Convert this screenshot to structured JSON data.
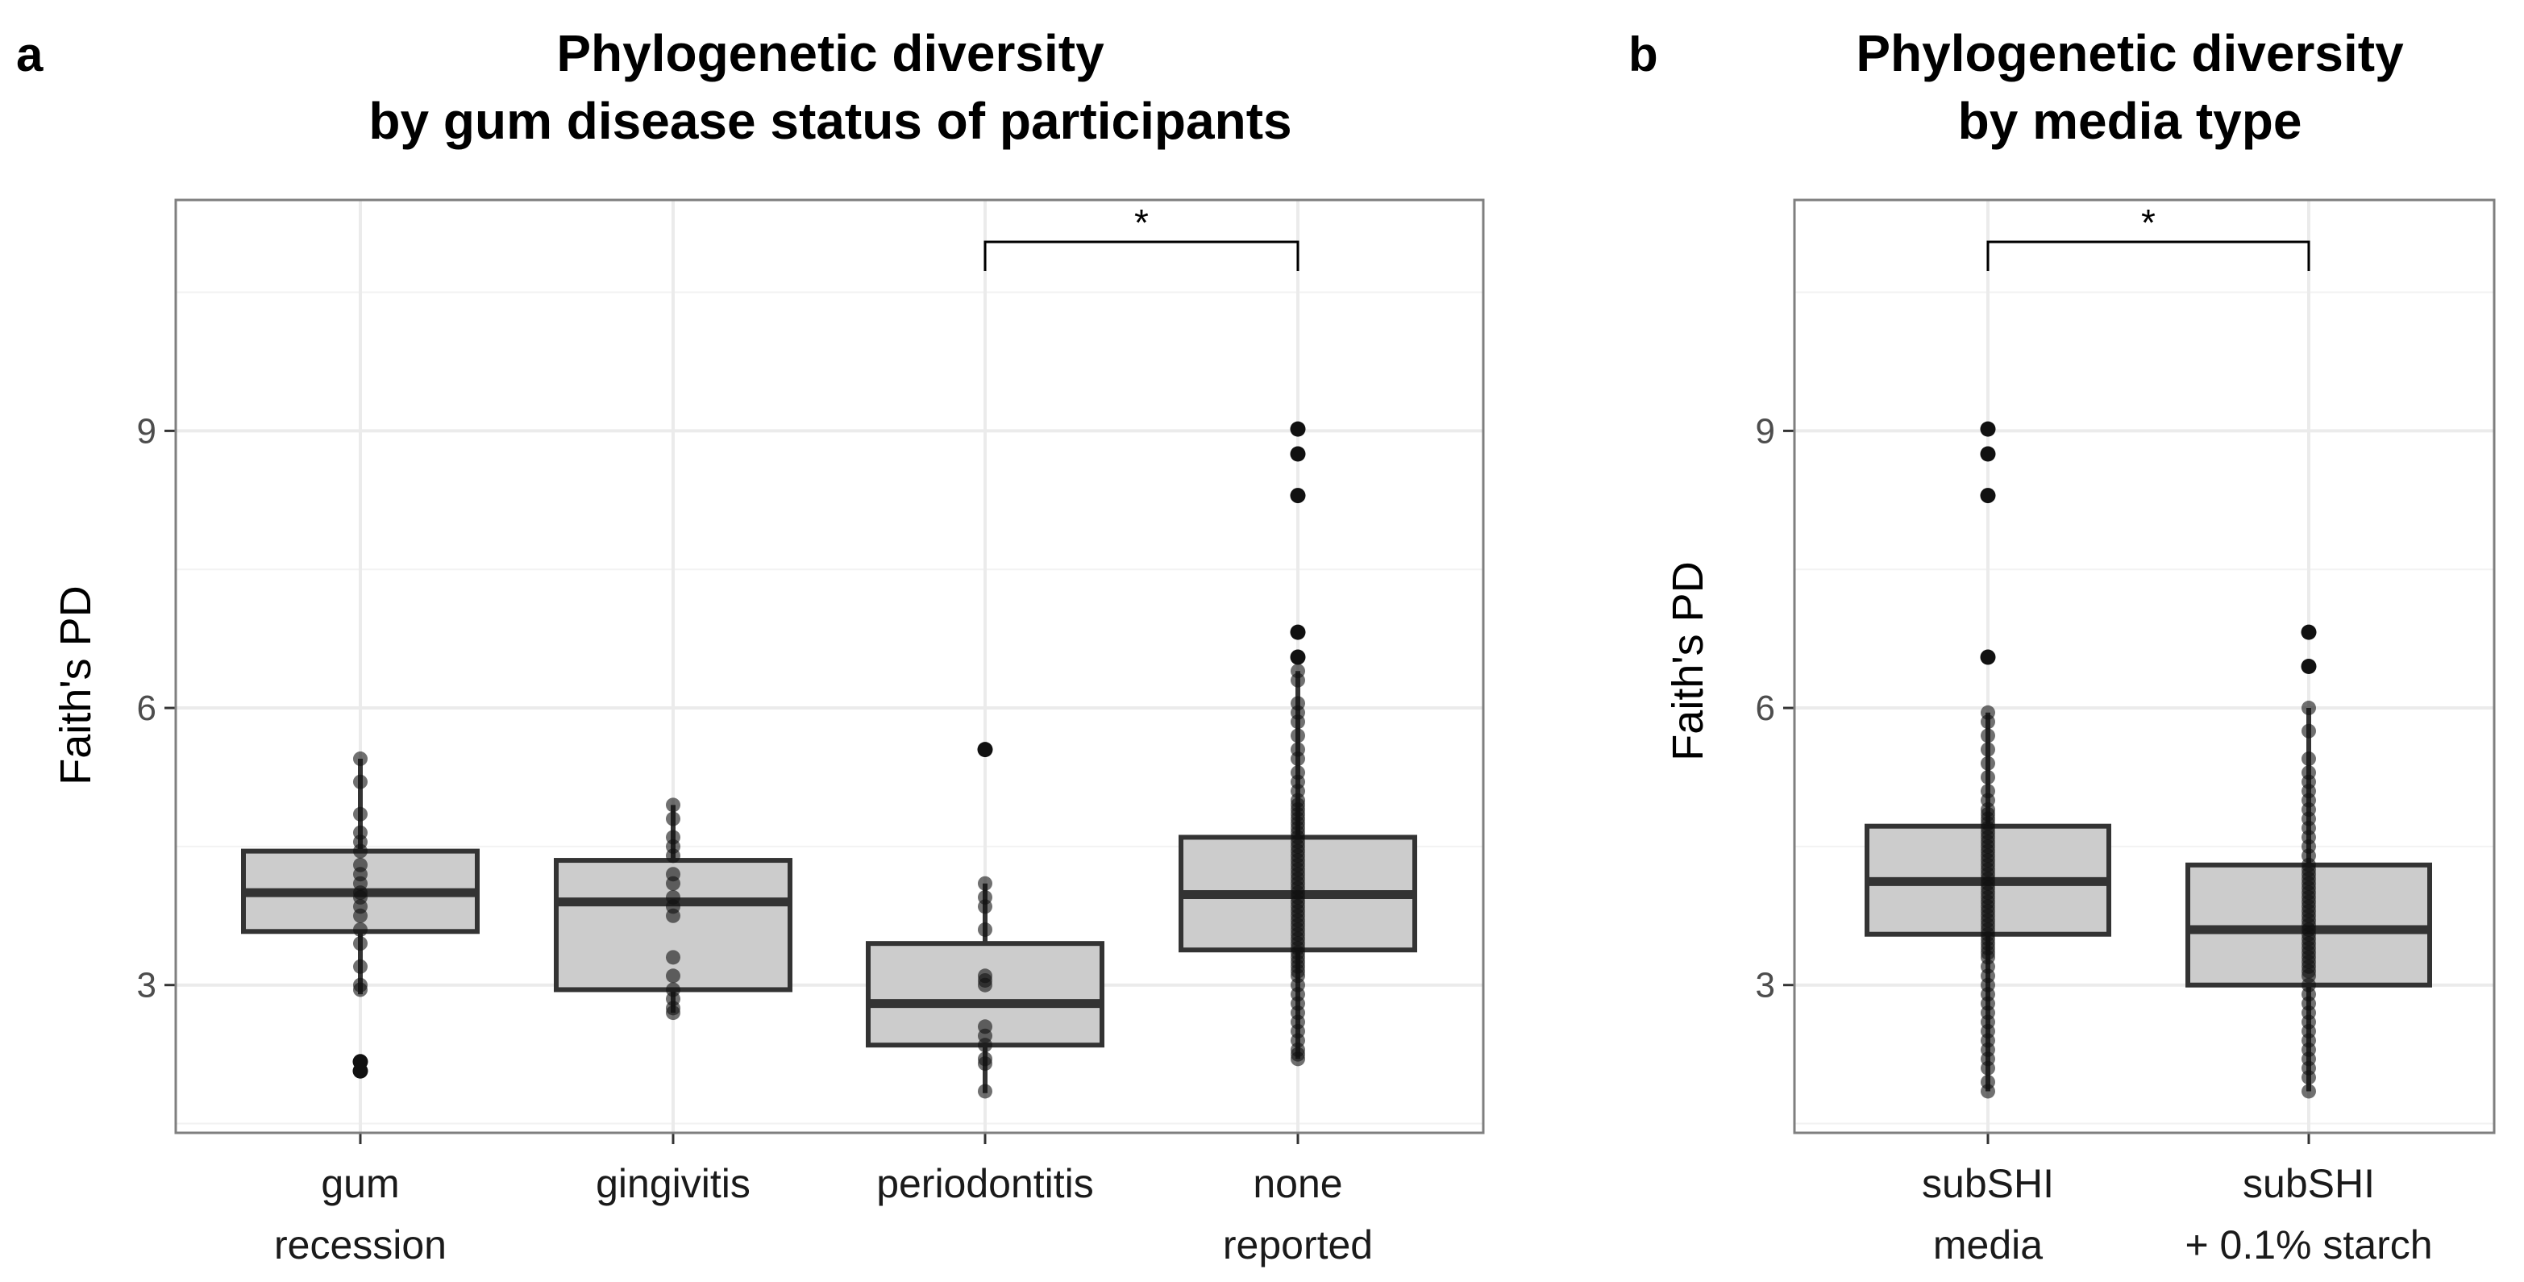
{
  "chart_data": [
    {
      "panel": "a",
      "type": "box",
      "title": [
        "Phylogenetic diversity",
        "by gum disease status of participants"
      ],
      "ylabel": "Faith's PD",
      "xlabel": "",
      "ylim": [
        1.4,
        11.5
      ],
      "yticks": [
        3,
        6,
        9
      ],
      "grid": true,
      "categories": [
        {
          "label": [
            "gum",
            "recession"
          ],
          "q1": 3.58,
          "median": 4.0,
          "q3": 4.45,
          "whisker_low": 2.9,
          "whisker_high": 5.45,
          "points": [
            5.45,
            5.2,
            4.85,
            4.65,
            4.55,
            4.45,
            4.3,
            4.2,
            4.1,
            4.0,
            3.95,
            3.85,
            3.75,
            3.6,
            3.45,
            3.2,
            3.0,
            2.95
          ],
          "outliers": [
            2.17,
            2.07
          ]
        },
        {
          "label": [
            "gingivitis"
          ],
          "q1": 2.95,
          "median": 3.9,
          "q3": 4.35,
          "whisker_low": 2.7,
          "whisker_high": 4.95,
          "points": [
            4.95,
            4.8,
            4.6,
            4.5,
            4.4,
            4.2,
            4.1,
            3.95,
            3.85,
            3.75,
            3.3,
            3.1,
            2.95,
            2.85,
            2.75,
            2.7
          ],
          "outliers": []
        },
        {
          "label": [
            "periodontitis"
          ],
          "q1": 2.35,
          "median": 2.8,
          "q3": 3.45,
          "whisker_low": 1.83,
          "whisker_high": 4.1,
          "points": [
            4.1,
            3.95,
            3.85,
            3.6,
            3.1,
            3.05,
            3.0,
            2.55,
            2.45,
            2.35,
            2.2,
            2.15,
            1.85
          ],
          "outliers": [
            5.55
          ]
        },
        {
          "label": [
            "none",
            "reported"
          ],
          "q1": 3.38,
          "median": 3.98,
          "q3": 4.6,
          "whisker_low": 2.2,
          "whisker_high": 6.4,
          "points": [
            6.4,
            6.3,
            6.05,
            5.95,
            5.85,
            5.7,
            5.55,
            5.45,
            5.3,
            5.2,
            5.1,
            5.0,
            4.95,
            4.9,
            4.85,
            4.8,
            4.75,
            4.7,
            4.65,
            4.6,
            4.55,
            4.5,
            4.45,
            4.4,
            4.35,
            4.3,
            4.25,
            4.2,
            4.15,
            4.1,
            4.05,
            4.0,
            3.95,
            3.9,
            3.85,
            3.8,
            3.75,
            3.7,
            3.65,
            3.6,
            3.55,
            3.5,
            3.45,
            3.4,
            3.35,
            3.3,
            3.25,
            3.2,
            3.15,
            3.1,
            3.0,
            2.9,
            2.8,
            2.7,
            2.6,
            2.5,
            2.4,
            2.3,
            2.25,
            2.2
          ],
          "outliers": [
            9.02,
            8.75,
            8.3,
            6.82,
            6.55
          ]
        }
      ],
      "significance": [
        {
          "from": 2,
          "to": 3,
          "label": "*"
        }
      ]
    },
    {
      "panel": "b",
      "type": "box",
      "title": [
        "Phylogenetic diversity",
        "by media type"
      ],
      "ylabel": "Faith's PD",
      "xlabel": "",
      "ylim": [
        1.4,
        11.5
      ],
      "yticks": [
        3,
        6,
        9
      ],
      "grid": true,
      "categories": [
        {
          "label": [
            "subSHI",
            "media"
          ],
          "q1": 3.55,
          "median": 4.12,
          "q3": 4.72,
          "whisker_low": 1.85,
          "whisker_high": 5.95,
          "points": [
            5.95,
            5.85,
            5.7,
            5.55,
            5.4,
            5.25,
            5.1,
            5.0,
            4.9,
            4.85,
            4.8,
            4.75,
            4.7,
            4.65,
            4.6,
            4.55,
            4.5,
            4.45,
            4.4,
            4.35,
            4.3,
            4.25,
            4.2,
            4.15,
            4.1,
            4.05,
            4.0,
            3.95,
            3.9,
            3.85,
            3.8,
            3.75,
            3.7,
            3.65,
            3.6,
            3.55,
            3.5,
            3.45,
            3.4,
            3.35,
            3.3,
            3.2,
            3.1,
            3.0,
            2.9,
            2.8,
            2.7,
            2.6,
            2.5,
            2.4,
            2.3,
            2.2,
            2.1,
            1.95,
            1.85
          ],
          "outliers": [
            9.02,
            8.75,
            8.3,
            6.55
          ]
        },
        {
          "label": [
            "subSHI",
            "+ 0.1% starch"
          ],
          "q1": 3.0,
          "median": 3.6,
          "q3": 4.3,
          "whisker_low": 1.85,
          "whisker_high": 6.0,
          "points": [
            6.0,
            5.75,
            5.45,
            5.3,
            5.2,
            5.1,
            5.0,
            4.9,
            4.8,
            4.7,
            4.6,
            4.5,
            4.4,
            4.3,
            4.25,
            4.2,
            4.15,
            4.1,
            4.05,
            4.0,
            3.95,
            3.9,
            3.85,
            3.8,
            3.75,
            3.7,
            3.65,
            3.6,
            3.55,
            3.5,
            3.45,
            3.4,
            3.35,
            3.3,
            3.25,
            3.2,
            3.15,
            3.1,
            3.0,
            2.9,
            2.8,
            2.7,
            2.6,
            2.5,
            2.4,
            2.3,
            2.2,
            2.1,
            2.0,
            1.85
          ],
          "outliers": [
            6.82,
            6.45
          ]
        }
      ],
      "significance": [
        {
          "from": 0,
          "to": 1,
          "label": "*"
        }
      ]
    }
  ]
}
